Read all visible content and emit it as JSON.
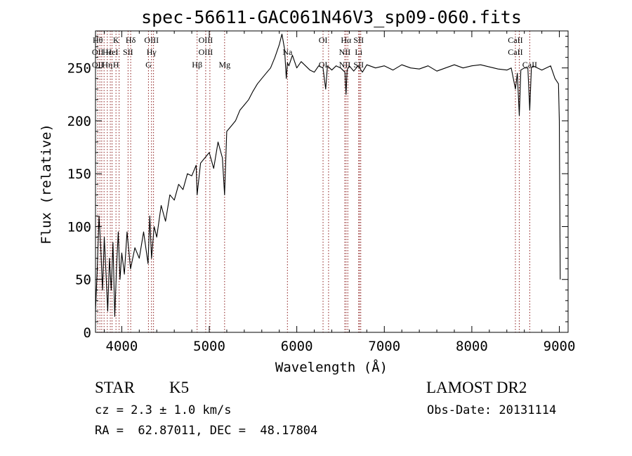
{
  "chart_data": {
    "type": "line",
    "title": "spec-56611-GAC061N46V3_sp09-060.fits",
    "xlabel": "Wavelength (Å)",
    "ylabel": "Flux (relative)",
    "xlim": [
      3700,
      9100
    ],
    "ylim": [
      0,
      285
    ],
    "xticks": [
      4000,
      5000,
      6000,
      7000,
      8000,
      9000
    ],
    "yticks": [
      0,
      50,
      100,
      150,
      200,
      250
    ],
    "grid": false,
    "line_color": "#000000",
    "marker_color": "#8b1a1a",
    "series": [
      {
        "x": [
          3700,
          3720,
          3740,
          3760,
          3780,
          3800,
          3820,
          3840,
          3860,
          3880,
          3900,
          3920,
          3940,
          3960,
          3980,
          4000,
          4030,
          4060,
          4100,
          4150,
          4200,
          4250,
          4300,
          4320,
          4340,
          4370,
          4400,
          4450,
          4500,
          4550,
          4600,
          4650,
          4700,
          4750,
          4800,
          4850,
          4861,
          4900,
          4950,
          5000,
          5050,
          5100,
          5150,
          5175,
          5200,
          5250,
          5300,
          5350,
          5400,
          5450,
          5500,
          5550,
          5600,
          5650,
          5700,
          5750,
          5800,
          5830,
          5860,
          5880,
          5893,
          5910,
          5950,
          6000,
          6050,
          6100,
          6150,
          6200,
          6250,
          6300,
          6330,
          6350,
          6400,
          6450,
          6500,
          6550,
          6563,
          6575,
          6600,
          6650,
          6700,
          6750,
          6800,
          6900,
          7000,
          7100,
          7200,
          7300,
          7400,
          7500,
          7600,
          7700,
          7800,
          7900,
          8000,
          8100,
          8200,
          8300,
          8400,
          8450,
          8498,
          8520,
          8542,
          8560,
          8600,
          8640,
          8662,
          8680,
          8700,
          8750,
          8800,
          8850,
          8900,
          8950,
          8990,
          9000,
          9010
        ],
        "y": [
          20,
          60,
          110,
          80,
          40,
          90,
          55,
          20,
          70,
          40,
          85,
          15,
          60,
          95,
          50,
          75,
          55,
          95,
          60,
          80,
          70,
          95,
          65,
          110,
          70,
          100,
          90,
          120,
          105,
          130,
          125,
          140,
          135,
          150,
          148,
          158,
          130,
          160,
          165,
          170,
          155,
          180,
          165,
          130,
          190,
          195,
          200,
          210,
          215,
          220,
          228,
          235,
          240,
          245,
          250,
          260,
          272,
          282,
          268,
          240,
          255,
          252,
          262,
          250,
          256,
          252,
          248,
          246,
          252,
          250,
          230,
          252,
          248,
          252,
          250,
          246,
          225,
          248,
          252,
          247,
          252,
          246,
          253,
          250,
          252,
          248,
          253,
          250,
          249,
          252,
          247,
          250,
          253,
          250,
          252,
          253,
          251,
          249,
          248,
          250,
          230,
          245,
          205,
          248,
          250,
          250,
          210,
          250,
          252,
          250,
          248,
          250,
          252,
          240,
          235,
          200,
          50
        ]
      }
    ],
    "lines": [
      {
        "x": 3726,
        "top": "Hθ",
        "mid": "OII",
        "low": "OII"
      },
      {
        "x": 3750,
        "top": "",
        "mid": "",
        "low": ""
      },
      {
        "x": 3771,
        "top": "",
        "mid": "",
        "low": ""
      },
      {
        "x": 3798,
        "top": "",
        "mid": "",
        "low": ""
      },
      {
        "x": 3835,
        "top": "",
        "mid": "Hε",
        "low": "Hη"
      },
      {
        "x": 3869,
        "top": "",
        "mid": "",
        "low": ""
      },
      {
        "x": 3889,
        "top": "",
        "mid": "HeI",
        "low": ""
      },
      {
        "x": 3934,
        "top": "K",
        "mid": "",
        "low": "H"
      },
      {
        "x": 3970,
        "top": "",
        "mid": "",
        "low": ""
      },
      {
        "x": 4072,
        "top": "",
        "mid": "SII",
        "low": ""
      },
      {
        "x": 4102,
        "top": "Hδ",
        "mid": "",
        "low": ""
      },
      {
        "x": 4305,
        "top": "",
        "mid": "",
        "low": "G"
      },
      {
        "x": 4340,
        "top": "OIII",
        "mid": "Hγ",
        "low": ""
      },
      {
        "x": 4363,
        "top": "",
        "mid": "",
        "low": ""
      },
      {
        "x": 4861,
        "top": "",
        "mid": "",
        "low": "Hβ"
      },
      {
        "x": 4959,
        "top": "OIII",
        "mid": "OIII",
        "low": ""
      },
      {
        "x": 5007,
        "top": "",
        "mid": "",
        "low": ""
      },
      {
        "x": 5175,
        "top": "",
        "mid": "",
        "low": "Mg"
      },
      {
        "x": 5893,
        "top": "",
        "mid": "Na",
        "low": ""
      },
      {
        "x": 6300,
        "top": "OI",
        "mid": "",
        "low": "OI"
      },
      {
        "x": 6363,
        "top": "",
        "mid": "",
        "low": ""
      },
      {
        "x": 6548,
        "top": "",
        "mid": "NII",
        "low": "NII"
      },
      {
        "x": 6563,
        "top": "Hα",
        "mid": "",
        "low": ""
      },
      {
        "x": 6583,
        "top": "",
        "mid": "",
        "low": ""
      },
      {
        "x": 6707,
        "top": "SII",
        "mid": "Li",
        "low": "SII"
      },
      {
        "x": 6717,
        "top": "",
        "mid": "",
        "low": ""
      },
      {
        "x": 6731,
        "top": "",
        "mid": "",
        "low": ""
      },
      {
        "x": 8498,
        "top": "CaII",
        "mid": "CaII",
        "low": ""
      },
      {
        "x": 8542,
        "top": "",
        "mid": "",
        "low": ""
      },
      {
        "x": 8662,
        "top": "",
        "mid": "",
        "low": "CaII"
      }
    ]
  },
  "footer": {
    "class_label": "STAR",
    "subclass": "K5",
    "survey": "LAMOST DR2",
    "cz": "cz = 2.3 ± 1.0 km/s",
    "obs_date": "Obs-Date: 20131114",
    "radec": "RA =  62.87011, DEC =  48.17804"
  }
}
